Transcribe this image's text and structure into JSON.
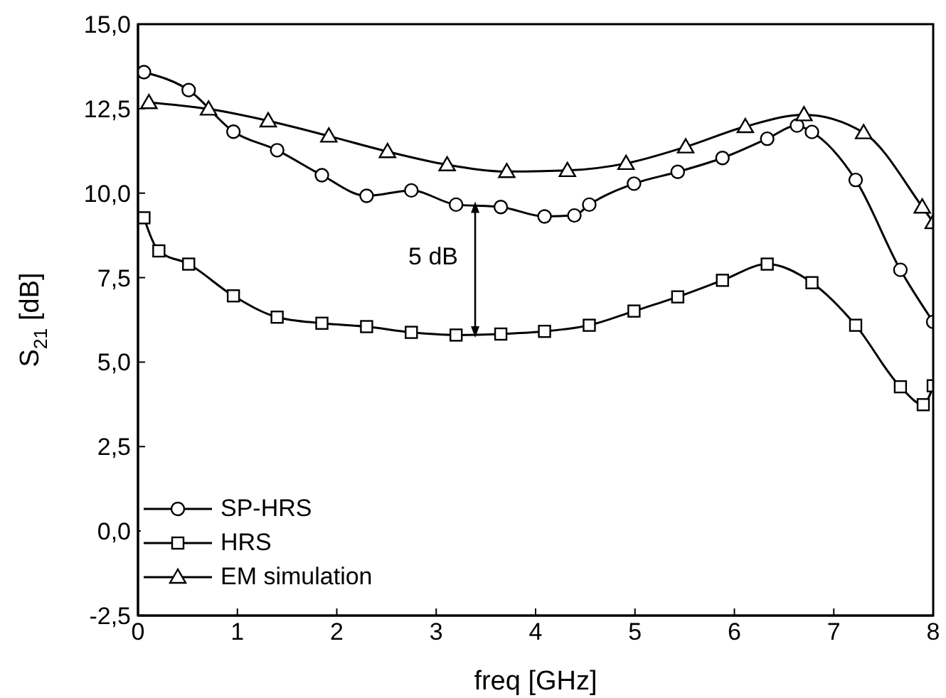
{
  "chart_data": {
    "type": "line",
    "xlabel": "freq [GHz]",
    "ylabel": "S$_{21}$ [dB]",
    "xlim": [
      0,
      8
    ],
    "xticks": [
      0,
      1,
      2,
      3,
      4,
      5,
      6,
      7,
      8
    ],
    "ylim": [
      -2.5,
      15
    ],
    "yticks": [
      {
        "value": -2.5,
        "label": "-2,5"
      },
      {
        "value": 0,
        "label": "0,0"
      },
      {
        "value": 2.5,
        "label": "2,5"
      },
      {
        "value": 5,
        "label": "5,0"
      },
      {
        "value": 7.5,
        "label": "7,5"
      },
      {
        "value": 10,
        "label": "10,0"
      },
      {
        "value": 12.5,
        "label": "12,5"
      },
      {
        "value": 15,
        "label": "15,0"
      }
    ],
    "grid": false,
    "legend": "bottom left",
    "line_style": "solid",
    "annotations": [
      "5 dB"
    ],
    "series": [
      {
        "name": "SP-HRS",
        "color": "#000000",
        "marker": "circle",
        "x": [
          0.06,
          0.51,
          0.96,
          1.4,
          1.85,
          2.3,
          2.75,
          3.2,
          3.65,
          4.09,
          4.39,
          4.54,
          4.99,
          5.43,
          5.88,
          6.33,
          6.63,
          6.78,
          7.22,
          7.67,
          8.0
        ],
        "values": [
          13.58,
          13.05,
          11.82,
          11.27,
          10.53,
          9.92,
          10.08,
          9.66,
          9.59,
          9.31,
          9.34,
          9.66,
          10.28,
          10.63,
          11.04,
          11.61,
          12.0,
          11.81,
          10.39,
          7.73,
          6.19
        ]
      },
      {
        "name": "HRS",
        "color": "#000000",
        "marker": "square",
        "x": [
          0.06,
          0.21,
          0.51,
          0.96,
          1.4,
          1.85,
          2.3,
          2.75,
          3.2,
          3.65,
          4.09,
          4.54,
          4.99,
          5.43,
          5.88,
          6.33,
          6.78,
          7.22,
          7.67,
          7.9,
          8.0
        ],
        "values": [
          9.27,
          8.29,
          7.9,
          6.96,
          6.33,
          6.15,
          6.05,
          5.88,
          5.8,
          5.83,
          5.91,
          6.09,
          6.51,
          6.93,
          7.42,
          7.9,
          7.35,
          6.09,
          4.27,
          3.74,
          4.3
        ]
      },
      {
        "name": "EM simulation",
        "color": "#000000",
        "marker": "triangle",
        "x": [
          0.11,
          0.71,
          1.31,
          1.92,
          2.51,
          3.11,
          3.71,
          4.32,
          4.91,
          5.51,
          6.11,
          6.7,
          7.3,
          7.89,
          8.0
        ],
        "values": [
          12.68,
          12.49,
          12.14,
          11.69,
          11.23,
          10.84,
          10.64,
          10.67,
          10.88,
          11.37,
          11.97,
          12.32,
          11.79,
          9.59,
          9.13
        ]
      }
    ]
  }
}
